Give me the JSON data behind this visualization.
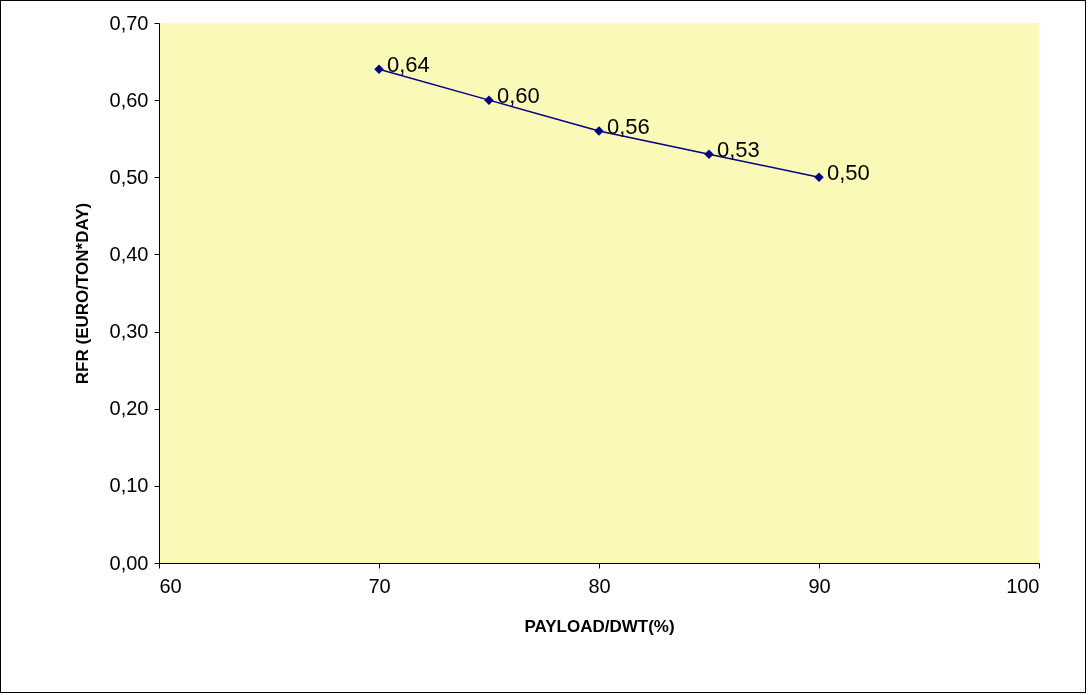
{
  "chart_data": {
    "type": "line",
    "xlabel": "PAYLOAD/DWT(%)",
    "ylabel": "RFR (EURO/TON*DAY)",
    "x": [
      70,
      75,
      80,
      85,
      90
    ],
    "series": [
      {
        "color": "#000080",
        "values": [
          0.64,
          0.6,
          0.56,
          0.53,
          0.5
        ],
        "value_labels": [
          "0,64",
          "0,60",
          "0,56",
          "0,53",
          "0,50"
        ]
      }
    ],
    "marker": "diamond",
    "line_style": "solid",
    "xlim": [
      60,
      100
    ],
    "xticks": [
      60,
      70,
      80,
      90,
      100
    ],
    "ylim": [
      0,
      0.7
    ],
    "yticks": [
      {
        "value": 0,
        "label": "0,00"
      },
      {
        "value": 0.1,
        "label": "0,10"
      },
      {
        "value": 0.2,
        "label": "0,20"
      },
      {
        "value": 0.3,
        "label": "0,30"
      },
      {
        "value": 0.4,
        "label": "0,40"
      },
      {
        "value": 0.5,
        "label": "0,50"
      },
      {
        "value": 0.6,
        "label": "0,60"
      },
      {
        "value": 0.7,
        "label": "0,70"
      }
    ]
  }
}
